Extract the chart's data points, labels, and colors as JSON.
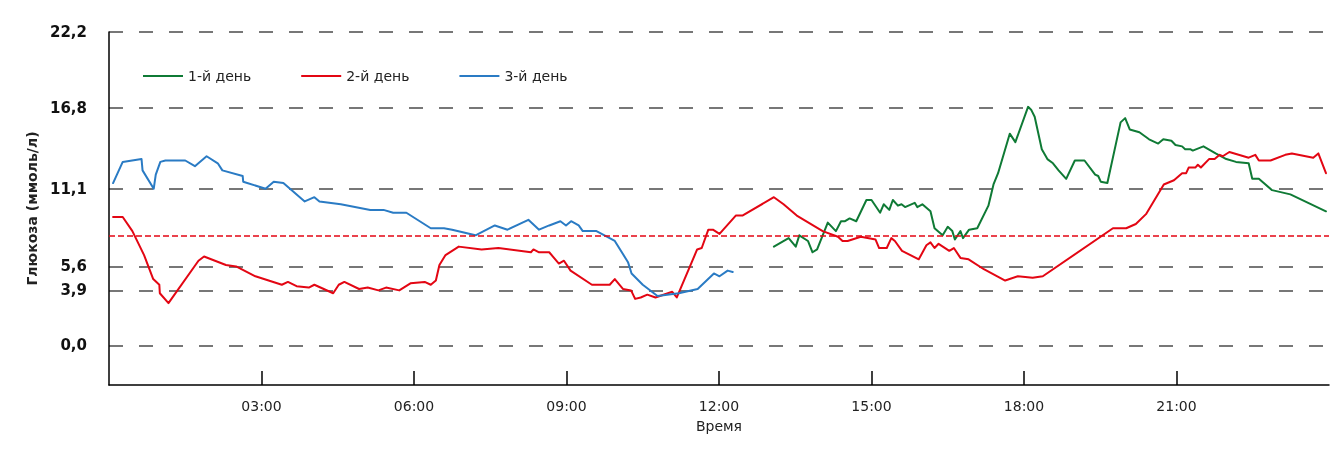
{
  "chart_data": {
    "type": "line",
    "xlabel": "Время",
    "ylabel": "Глюкоза (ммоль/л)",
    "xlim": [
      0,
      24
    ],
    "xticks": [
      {
        "value": 3,
        "label": "03:00"
      },
      {
        "value": 6,
        "label": "06:00"
      },
      {
        "value": 9,
        "label": "09:00"
      },
      {
        "value": 12,
        "label": "12:00"
      },
      {
        "value": 15,
        "label": "15:00"
      },
      {
        "value": 18,
        "label": "18:00"
      },
      {
        "value": 21,
        "label": "21:00"
      }
    ],
    "ylim": [
      -2.8,
      22.2
    ],
    "yticks": [
      {
        "value": 0,
        "label": "0,0"
      },
      {
        "value": 3.9,
        "label": "3,9"
      },
      {
        "value": 5.6,
        "label": "5,6"
      },
      {
        "value": 11.1,
        "label": "11,1"
      },
      {
        "value": 16.8,
        "label": "16,8"
      },
      {
        "value": 22.2,
        "label": "22,2"
      }
    ],
    "grid": "y",
    "legend": "top left",
    "marker": "none",
    "line_style": "solid",
    "ref_lines": [
      {
        "axis": "y",
        "value": 7.8,
        "label": null,
        "color": "#e30613",
        "line_style": "dashed"
      }
    ],
    "series": [
      {
        "name": "1-й день",
        "color": "#0f7a35",
        "x": [
          13.08,
          13.37,
          13.51,
          13.58,
          13.75,
          13.84,
          13.93,
          14.14,
          14.3,
          14.4,
          14.48,
          14.57,
          14.7,
          14.9,
          15.0,
          15.17,
          15.24,
          15.35,
          15.42,
          15.52,
          15.59,
          15.66,
          15.85,
          15.9,
          16.0,
          16.16,
          16.24,
          16.4,
          16.5,
          16.59,
          16.64,
          16.75,
          16.8,
          16.92,
          17.08,
          17.3,
          17.4,
          17.49,
          17.72,
          17.83,
          18.08,
          18.14,
          18.21,
          18.35,
          18.46,
          18.57,
          18.68,
          18.83,
          19.0,
          19.19,
          19.4,
          19.46,
          19.51,
          19.64,
          19.9,
          19.99,
          20.08,
          20.27,
          20.46,
          20.64,
          20.74,
          20.9,
          20.98,
          21.11,
          21.17,
          21.27,
          21.32,
          21.53,
          21.77,
          21.98,
          22.17,
          22.42,
          22.49,
          22.62,
          22.88,
          23.24,
          23.59,
          23.94
        ],
        "values": [
          7.0,
          7.6,
          7.0,
          7.8,
          7.4,
          6.6,
          6.8,
          8.7,
          8.1,
          8.8,
          8.8,
          9.0,
          8.8,
          10.3,
          10.3,
          9.4,
          10.0,
          9.6,
          10.3,
          9.9,
          10.0,
          9.8,
          10.1,
          9.8,
          10.0,
          9.5,
          8.3,
          7.8,
          8.4,
          8.1,
          7.5,
          8.1,
          7.6,
          8.2,
          8.3,
          9.9,
          11.4,
          12.2,
          15.0,
          14.4,
          16.9,
          16.7,
          16.2,
          13.9,
          13.2,
          12.9,
          12.4,
          11.8,
          13.1,
          13.1,
          12.1,
          12.0,
          11.6,
          11.5,
          15.8,
          16.1,
          15.3,
          15.1,
          14.6,
          14.3,
          14.6,
          14.5,
          14.2,
          14.1,
          13.9,
          13.9,
          13.8,
          14.1,
          13.6,
          13.2,
          13.0,
          12.9,
          11.8,
          11.8,
          11.0,
          10.7,
          10.1,
          9.5
        ]
      },
      {
        "name": "2-й день",
        "color": "#e30613",
        "x": [
          0.08,
          0.27,
          0.46,
          0.69,
          0.87,
          0.99,
          1.0,
          1.17,
          1.76,
          1.87,
          2.3,
          2.5,
          2.88,
          3.4,
          3.52,
          3.69,
          3.93,
          4.04,
          4.41,
          4.52,
          4.63,
          4.92,
          5.09,
          5.3,
          5.45,
          5.71,
          5.93,
          6.21,
          6.33,
          6.43,
          6.5,
          6.62,
          6.88,
          7.33,
          7.66,
          8.3,
          8.35,
          8.46,
          8.66,
          8.85,
          8.95,
          9.08,
          9.5,
          9.85,
          9.95,
          10.11,
          10.27,
          10.35,
          10.46,
          10.59,
          10.75,
          11.08,
          11.17,
          11.57,
          11.66,
          11.79,
          11.88,
          12.01,
          12.33,
          12.46,
          13.08,
          13.27,
          13.53,
          14.04,
          14.34,
          14.43,
          14.53,
          14.79,
          15.08,
          15.15,
          15.3,
          15.39,
          15.46,
          15.6,
          15.93,
          16.08,
          16.16,
          16.24,
          16.32,
          16.53,
          16.62,
          16.75,
          16.91,
          17.21,
          17.63,
          17.88,
          18.17,
          18.37,
          19.75,
          20.01,
          20.2,
          20.4,
          20.75,
          20.95,
          21.11,
          21.19,
          21.24,
          21.37,
          21.42,
          21.48,
          21.64,
          21.75,
          21.85,
          21.91,
          22.04,
          22.42,
          22.55,
          22.62,
          22.85,
          23.14,
          23.27,
          23.69,
          23.79,
          23.94
        ],
        "values": [
          9.1,
          9.1,
          8.1,
          6.4,
          4.7,
          4.3,
          3.7,
          3.0,
          6.0,
          6.3,
          5.7,
          5.6,
          4.9,
          4.3,
          4.5,
          4.2,
          4.1,
          4.3,
          3.7,
          4.3,
          4.5,
          4.0,
          4.1,
          3.9,
          4.1,
          3.9,
          4.4,
          4.5,
          4.3,
          4.6,
          5.7,
          6.4,
          7.0,
          6.8,
          6.9,
          6.6,
          6.8,
          6.6,
          6.6,
          5.8,
          6.0,
          5.3,
          4.3,
          4.3,
          4.7,
          4.0,
          3.9,
          3.3,
          3.4,
          3.6,
          3.4,
          3.8,
          3.4,
          6.8,
          6.9,
          8.2,
          8.2,
          7.9,
          9.2,
          9.2,
          10.5,
          10.0,
          9.2,
          8.1,
          7.7,
          7.4,
          7.4,
          7.7,
          7.5,
          6.9,
          6.9,
          7.6,
          7.4,
          6.7,
          6.1,
          7.1,
          7.3,
          6.9,
          7.2,
          6.7,
          6.9,
          6.2,
          6.1,
          5.4,
          4.6,
          4.9,
          4.8,
          4.9,
          8.3,
          8.3,
          8.6,
          9.3,
          11.4,
          11.7,
          12.2,
          12.2,
          12.6,
          12.6,
          12.8,
          12.6,
          13.2,
          13.2,
          13.5,
          13.4,
          13.7,
          13.3,
          13.5,
          13.1,
          13.1,
          13.5,
          13.6,
          13.3,
          13.6,
          12.2
        ]
      },
      {
        "name": "3-й день",
        "color": "#2a7bc4",
        "x": [
          0.08,
          0.27,
          0.64,
          0.66,
          0.88,
          0.92,
          1.01,
          1.11,
          1.5,
          1.69,
          1.92,
          2.14,
          2.23,
          2.63,
          2.64,
          3.08,
          3.24,
          3.43,
          3.85,
          4.04,
          4.14,
          4.56,
          5.14,
          5.4,
          5.59,
          5.85,
          6.33,
          6.59,
          6.75,
          7.21,
          7.59,
          7.84,
          8.25,
          8.46,
          8.66,
          8.88,
          8.99,
          9.09,
          9.24,
          9.32,
          9.59,
          9.95,
          10.21,
          10.28,
          10.5,
          10.79,
          11.21,
          11.58,
          11.9,
          12.01,
          12.17,
          12.27
        ],
        "values": [
          11.5,
          13.0,
          13.2,
          12.4,
          11.1,
          12.1,
          13.0,
          13.1,
          13.1,
          12.7,
          13.4,
          12.9,
          12.4,
          12.0,
          11.6,
          11.1,
          11.6,
          11.5,
          10.2,
          10.5,
          10.2,
          10.0,
          9.6,
          9.6,
          9.4,
          9.4,
          8.3,
          8.3,
          8.2,
          7.8,
          8.5,
          8.2,
          8.9,
          8.2,
          8.5,
          8.8,
          8.5,
          8.8,
          8.5,
          8.1,
          8.1,
          7.4,
          5.9,
          5.1,
          4.3,
          3.5,
          3.7,
          4.0,
          5.1,
          4.9,
          5.3,
          5.2
        ]
      }
    ]
  }
}
